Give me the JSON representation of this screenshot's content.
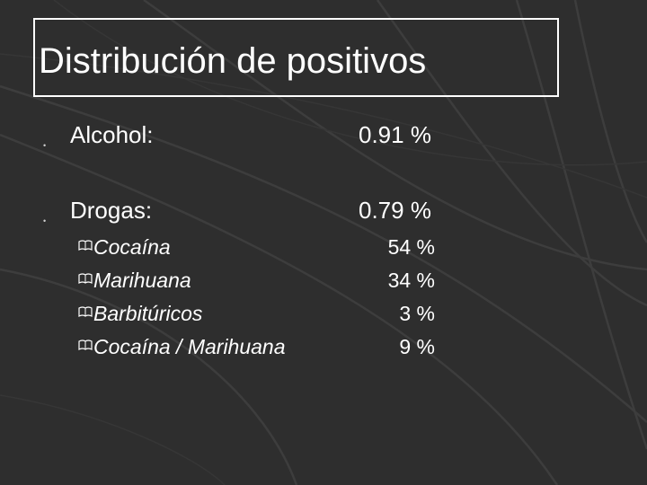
{
  "slide": {
    "title": "Distribución de positivos",
    "bullets": [
      {
        "label": "Alcohol:",
        "value": "0.91 %"
      },
      {
        "label": "Drogas:",
        "value": "0.79 %"
      }
    ],
    "sub_items": [
      {
        "label": "Cocaína",
        "value": "54 %"
      },
      {
        "label": "Marihuana",
        "value": "34 %"
      },
      {
        "label": "Barbitúricos",
        "value": "3 %"
      },
      {
        "label": "Cocaína / Marihuana",
        "value": "9 %"
      }
    ]
  },
  "colors": {
    "background": "#2e2e2e",
    "background_lines": "#3c3c3c",
    "text": "#ffffff"
  }
}
